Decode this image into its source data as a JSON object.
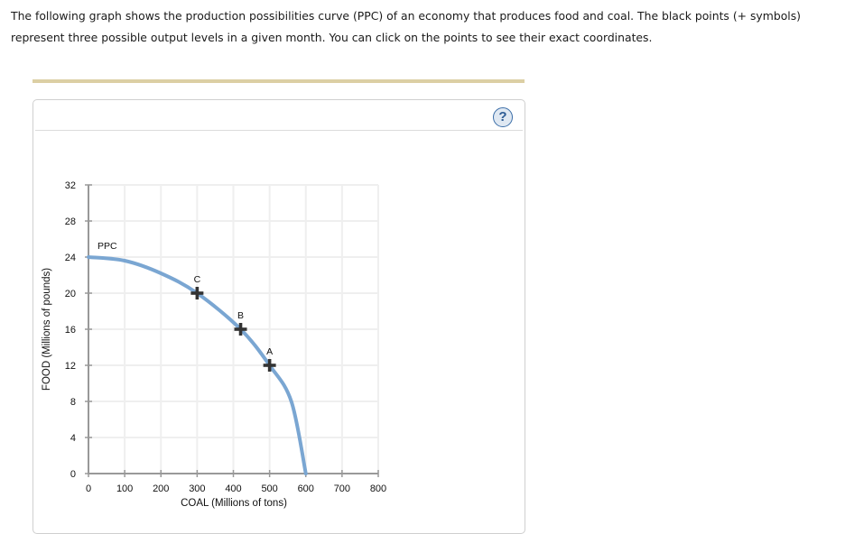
{
  "intro": {
    "text": "The following graph shows the production possibilities curve (PPC) of an economy that produces food and coal. The black points (+ symbols) represent three possible output levels in a given month. You can click on the points to see their exact coordinates."
  },
  "panel": {
    "help_icon": "?",
    "colors": {
      "accent_bar": "#dccfa4",
      "curve": "#7aa6d2",
      "points": "#333333",
      "help": "#3b6ea8"
    }
  },
  "chart_data": {
    "type": "line",
    "title": "",
    "xlabel": "COAL (Millions of tons)",
    "ylabel": "FOOD (Millions of pounds)",
    "xlim": [
      0,
      800
    ],
    "ylim": [
      0,
      32
    ],
    "x_ticks": [
      0,
      100,
      200,
      300,
      400,
      500,
      600,
      700,
      800
    ],
    "y_ticks": [
      0,
      4,
      8,
      12,
      16,
      20,
      24,
      28,
      32
    ],
    "grid": true,
    "series": [
      {
        "name": "PPC",
        "label": "PPC",
        "x": [
          0,
          100,
          200,
          300,
          420,
          500,
          560,
          600
        ],
        "y": [
          24,
          23.6,
          22.2,
          20,
          16,
          12,
          8,
          0
        ]
      }
    ],
    "points": [
      {
        "label": "A",
        "x": 500,
        "y": 12
      },
      {
        "label": "B",
        "x": 420,
        "y": 16
      },
      {
        "label": "C",
        "x": 300,
        "y": 20
      }
    ]
  }
}
